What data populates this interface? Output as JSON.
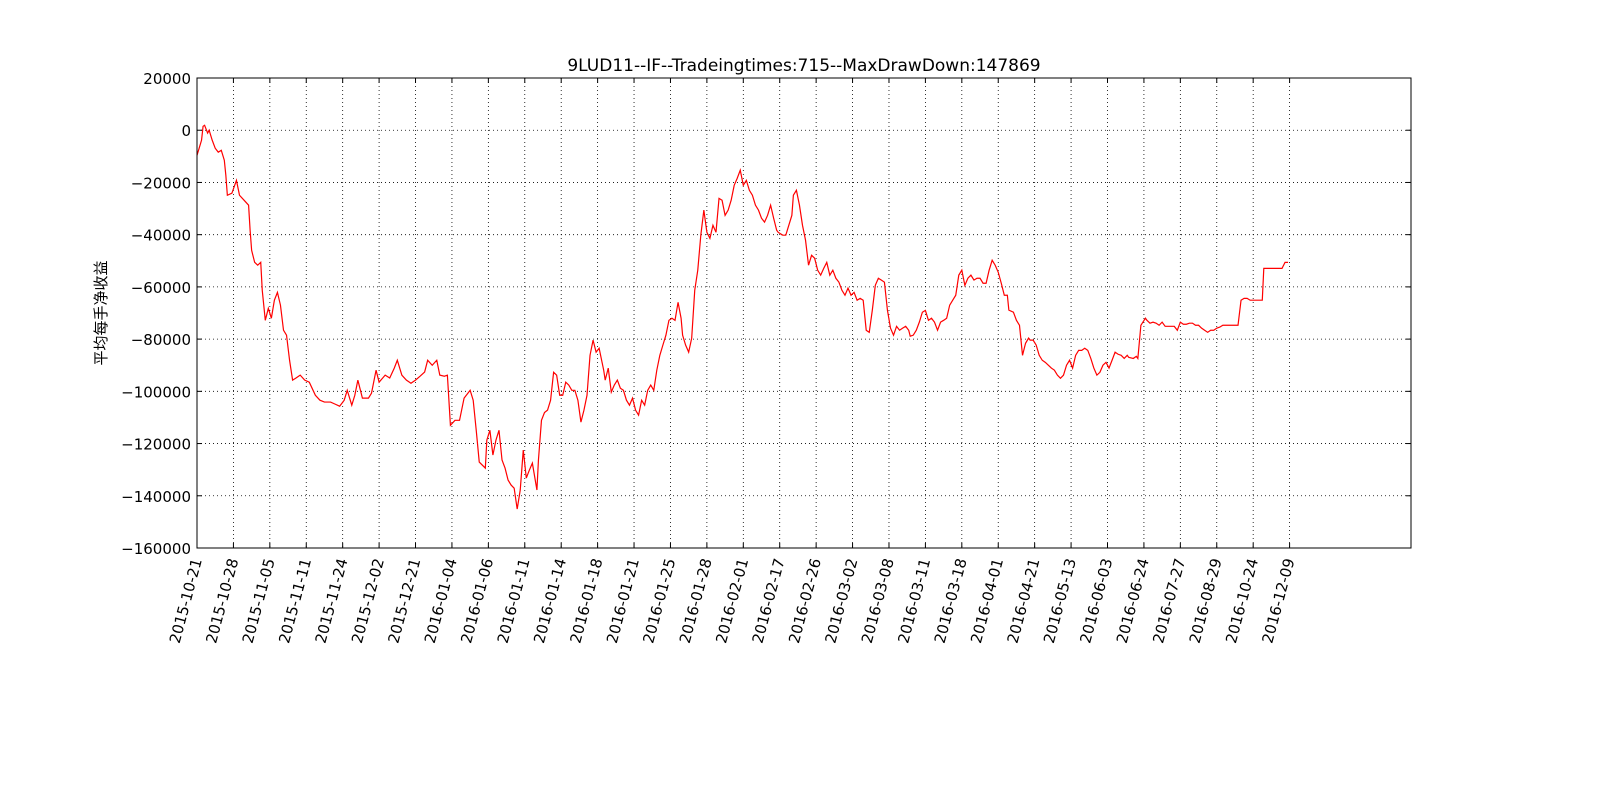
{
  "chart_data": {
    "type": "line",
    "title": "9LUD11--IF--Tradeingtimes:715--MaxDrawDown:147869",
    "y_label": "平均每手净收益",
    "color": "#ff0000",
    "grid": true,
    "xlim": [
      0,
      800
    ],
    "ylim": [
      -160000,
      20000
    ],
    "yticks": [
      20000,
      0,
      {
        "value": -20000,
        "label": "−20000"
      },
      {
        "value": -40000,
        "label": "−40000"
      },
      {
        "value": -60000,
        "label": "−60000"
      },
      {
        "value": -80000,
        "label": "−80000"
      },
      {
        "value": -100000,
        "label": "−100000"
      },
      {
        "value": -120000,
        "label": "−120000"
      },
      {
        "value": -140000,
        "label": "−140000"
      },
      {
        "value": -160000,
        "label": "−160000"
      }
    ],
    "xticks": [
      {
        "value": 0,
        "label": "2015-10-21"
      },
      {
        "value": 24,
        "label": "2015-10-28"
      },
      {
        "value": 48,
        "label": "2015-11-05"
      },
      {
        "value": 72,
        "label": "2015-11-11"
      },
      {
        "value": 96,
        "label": "2015-11-24"
      },
      {
        "value": 120,
        "label": "2015-12-02"
      },
      {
        "value": 144,
        "label": "2015-12-21"
      },
      {
        "value": 168,
        "label": "2016-01-04"
      },
      {
        "value": 192,
        "label": "2016-01-06"
      },
      {
        "value": 216,
        "label": "2016-01-11"
      },
      {
        "value": 240,
        "label": "2016-01-14"
      },
      {
        "value": 264,
        "label": "2016-01-18"
      },
      {
        "value": 288,
        "label": "2016-01-21"
      },
      {
        "value": 312,
        "label": "2016-01-25"
      },
      {
        "value": 336,
        "label": "2016-01-28"
      },
      {
        "value": 360,
        "label": "2016-02-01"
      },
      {
        "value": 384,
        "label": "2016-02-17"
      },
      {
        "value": 408,
        "label": "2016-02-26"
      },
      {
        "value": 432,
        "label": "2016-03-02"
      },
      {
        "value": 456,
        "label": "2016-03-08"
      },
      {
        "value": 480,
        "label": "2016-03-11"
      },
      {
        "value": 504,
        "label": "2016-03-18"
      },
      {
        "value": 528,
        "label": "2016-04-01"
      },
      {
        "value": 552,
        "label": "2016-04-21"
      },
      {
        "value": 576,
        "label": "2016-05-13"
      },
      {
        "value": 600,
        "label": "2016-06-03"
      },
      {
        "value": 624,
        "label": "2016-06-24"
      },
      {
        "value": 648,
        "label": "2016-07-27"
      },
      {
        "value": 672,
        "label": "2016-08-29"
      },
      {
        "value": 696,
        "label": "2016-10-24"
      },
      {
        "value": 720,
        "label": "2016-12-09"
      }
    ],
    "x": [
      0,
      1,
      3,
      4,
      5,
      7,
      8,
      10,
      12,
      14,
      16,
      18,
      19,
      20,
      23,
      26,
      28,
      31,
      34,
      35,
      36,
      38,
      40,
      42,
      43,
      45,
      47,
      49,
      51,
      53,
      55,
      57,
      59,
      61,
      63,
      65,
      68,
      71,
      74,
      78,
      81,
      84,
      88,
      91,
      94,
      97,
      99,
      102,
      104,
      106,
      109,
      113,
      115,
      118,
      120,
      124,
      127,
      130,
      132,
      135,
      138,
      141,
      144,
      147,
      150,
      152,
      155,
      158,
      160,
      163,
      165,
      167,
      170,
      173,
      176,
      180,
      182,
      184,
      186,
      190,
      191,
      193,
      195,
      197,
      199,
      201,
      203,
      205,
      207,
      209,
      211,
      213,
      215,
      217,
      219,
      221,
      224,
      225,
      227,
      229,
      231,
      233,
      235,
      237,
      239,
      241,
      243,
      245,
      247,
      249,
      251,
      253,
      255,
      257,
      259,
      261,
      263,
      265,
      268,
      269,
      271,
      273,
      275,
      277,
      279,
      281,
      283,
      285,
      287,
      289,
      291,
      293,
      295,
      297,
      299,
      301,
      303,
      305,
      307,
      309,
      311,
      313,
      315,
      317,
      319,
      320,
      322,
      324,
      326,
      328,
      330,
      332,
      334,
      336,
      338,
      340,
      342,
      344,
      346,
      348,
      350,
      352,
      354,
      356,
      358,
      360,
      362,
      364,
      366,
      368,
      370,
      372,
      374,
      376,
      378,
      380,
      382,
      383,
      386,
      388,
      389,
      392,
      393,
      395,
      397,
      399,
      401,
      403,
      405,
      407,
      409,
      411,
      413,
      415,
      417,
      419,
      421,
      423,
      425,
      427,
      429,
      431,
      433,
      435,
      437,
      439,
      441,
      443,
      445,
      447,
      449,
      451,
      453,
      455,
      457,
      459,
      461,
      463,
      465,
      467,
      469,
      470,
      472,
      474,
      476,
      478,
      480,
      482,
      484,
      486,
      488,
      490,
      492,
      494,
      496,
      498,
      500,
      502,
      504,
      506,
      508,
      510,
      512,
      514,
      516,
      518,
      520,
      522,
      524,
      526,
      528,
      530,
      532,
      534,
      535,
      538,
      540,
      542,
      544,
      546,
      548,
      549,
      551,
      553,
      555,
      557,
      559,
      561,
      563,
      565,
      567,
      569,
      571,
      573,
      575,
      577,
      579,
      581,
      583,
      585,
      587,
      589,
      591,
      593,
      595,
      597,
      599,
      601,
      603,
      605,
      607,
      609,
      611,
      613,
      614,
      617,
      619,
      620,
      622,
      625,
      626,
      628,
      630,
      632,
      634,
      636,
      638,
      640,
      642,
      644,
      646,
      648,
      650,
      652,
      654,
      656,
      658,
      660,
      662,
      664,
      666,
      668,
      670,
      672,
      674,
      676,
      678,
      680,
      682,
      684,
      686,
      688,
      690,
      692,
      694,
      696,
      698,
      700,
      702,
      703,
      705,
      707,
      709,
      711,
      713,
      715,
      717,
      719
    ],
    "values": [
      -9600,
      -7700,
      -3800,
      1500,
      1900,
      -1100,
      0,
      -3800,
      -6900,
      -8400,
      -7700,
      -11500,
      -17200,
      -24900,
      -24100,
      -19200,
      -24900,
      -26800,
      -28700,
      -38300,
      -46000,
      -50600,
      -51700,
      -50600,
      -61300,
      -72800,
      -68200,
      -72000,
      -65100,
      -62100,
      -67000,
      -76600,
      -78500,
      -88100,
      -95700,
      -95000,
      -93800,
      -95700,
      -96500,
      -101500,
      -103400,
      -104100,
      -104100,
      -104900,
      -105700,
      -103400,
      -99600,
      -105300,
      -101500,
      -95700,
      -102600,
      -102600,
      -100700,
      -91900,
      -96500,
      -93800,
      -94900,
      -91100,
      -88100,
      -93800,
      -95700,
      -96900,
      -95700,
      -94200,
      -92600,
      -88100,
      -90000,
      -88100,
      -93800,
      -94200,
      -93800,
      -113000,
      -111100,
      -111100,
      -102600,
      -99600,
      -103400,
      -114900,
      -127100,
      -129400,
      -118700,
      -114900,
      -124400,
      -118700,
      -114900,
      -126300,
      -129400,
      -134000,
      -135900,
      -137100,
      -145100,
      -137800,
      -122500,
      -133200,
      -130200,
      -127500,
      -137800,
      -126300,
      -111100,
      -108100,
      -107200,
      -103400,
      -92700,
      -93800,
      -101500,
      -101500,
      -96500,
      -97600,
      -99600,
      -99600,
      -103400,
      -111800,
      -107200,
      -101500,
      -86200,
      -80400,
      -85000,
      -83500,
      -91900,
      -95700,
      -91100,
      -100300,
      -97600,
      -95700,
      -98800,
      -99600,
      -103400,
      -105300,
      -102600,
      -107200,
      -109100,
      -103400,
      -105300,
      -99600,
      -97600,
      -99600,
      -91900,
      -86200,
      -82300,
      -78500,
      -72800,
      -72000,
      -72800,
      -65900,
      -72000,
      -78500,
      -82300,
      -85000,
      -79600,
      -61300,
      -53600,
      -40200,
      -30600,
      -39100,
      -41400,
      -36400,
      -39100,
      -26100,
      -26800,
      -32600,
      -30600,
      -26800,
      -21100,
      -18400,
      -15300,
      -21100,
      -19200,
      -23000,
      -24900,
      -28700,
      -30600,
      -33700,
      -35200,
      -32600,
      -28700,
      -33700,
      -38300,
      -39100,
      -40200,
      -40200,
      -38300,
      -32600,
      -24900,
      -23000,
      -28700,
      -36400,
      -42100,
      -51700,
      -47900,
      -49000,
      -53600,
      -55500,
      -52900,
      -50600,
      -55500,
      -53600,
      -56700,
      -58200,
      -61300,
      -63200,
      -60500,
      -63200,
      -62100,
      -65100,
      -64400,
      -65100,
      -76600,
      -77400,
      -69000,
      -59400,
      -56700,
      -57400,
      -58200,
      -69000,
      -75800,
      -78500,
      -75100,
      -76600,
      -75800,
      -75100,
      -76600,
      -78900,
      -78500,
      -76600,
      -73500,
      -69700,
      -69000,
      -72800,
      -72000,
      -73500,
      -76600,
      -73500,
      -72800,
      -72000,
      -67000,
      -65100,
      -63200,
      -55500,
      -53600,
      -59400,
      -56700,
      -55500,
      -57400,
      -56700,
      -56700,
      -58600,
      -58600,
      -53600,
      -49800,
      -51700,
      -54400,
      -58600,
      -63200,
      -63200,
      -68900,
      -69700,
      -72800,
      -74700,
      -86200,
      -81600,
      -79600,
      -80400,
      -80400,
      -82300,
      -86200,
      -88100,
      -88900,
      -90000,
      -91100,
      -91900,
      -93800,
      -95000,
      -93800,
      -90000,
      -88100,
      -91100,
      -86200,
      -84300,
      -84300,
      -83500,
      -84300,
      -87400,
      -91100,
      -93800,
      -92700,
      -90000,
      -88900,
      -91100,
      -88100,
      -85000,
      -85800,
      -86200,
      -87400,
      -86200,
      -87000,
      -87400,
      -86600,
      -87400,
      -74700,
      -72000,
      -72800,
      -73900,
      -73500,
      -73900,
      -74700,
      -73500,
      -75100,
      -75100,
      -75100,
      -75100,
      -76600,
      -73500,
      -74300,
      -74300,
      -73900,
      -73900,
      -74700,
      -74700,
      -75800,
      -76600,
      -77400,
      -76600,
      -76600,
      -75800,
      -75400,
      -74700,
      -74700,
      -74700,
      -74700,
      -74700,
      -74700,
      -65100,
      -64400,
      -64400,
      -65100,
      -65100,
      -65100,
      -65100,
      -65100,
      -52900,
      -52900,
      -52900,
      -52900,
      -52900,
      -52900,
      -52900,
      -50600,
      -50600
    ]
  }
}
